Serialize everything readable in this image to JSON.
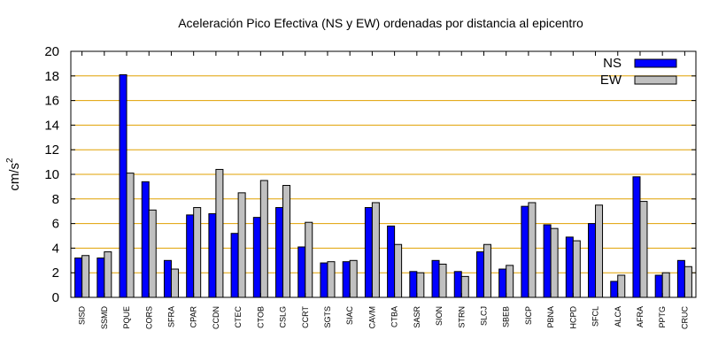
{
  "chart_data": {
    "type": "bar",
    "title": "Aceleración Pico Efectiva (NS y EW) ordenadas por distancia al epicentro",
    "xlabel": "",
    "ylabel": "cm/s",
    "ylabel_sup": "2",
    "ylim": [
      0,
      20
    ],
    "yticks": [
      "0",
      "2",
      "4",
      "6",
      "8",
      "10",
      "12",
      "14",
      "16",
      "18",
      "20"
    ],
    "grid": "horizontal",
    "grid_color": "#e0a000",
    "legend_position": "top-right",
    "categories": [
      "SISD",
      "SSMD",
      "PQUE",
      "CORS",
      "SFRA",
      "CPAR",
      "CCDN",
      "CTEC",
      "CTOB",
      "CSLG",
      "CCRT",
      "SGTS",
      "SIAC",
      "CAVM",
      "CTBA",
      "SASR",
      "SION",
      "STRN",
      "SLCJ",
      "SBEB",
      "SICP",
      "PBNA",
      "HCPD",
      "SFCL",
      "ALCA",
      "AFRA",
      "PPTG",
      "CRUC"
    ],
    "series": [
      {
        "name": "NS",
        "color": "#0000ff",
        "values": [
          3.2,
          3.2,
          18.1,
          9.4,
          3.0,
          6.7,
          6.8,
          5.2,
          6.5,
          7.3,
          4.1,
          2.8,
          2.9,
          7.3,
          5.8,
          2.1,
          3.0,
          2.1,
          3.7,
          2.3,
          7.4,
          5.9,
          4.9,
          6.0,
          1.3,
          9.8,
          1.8,
          3.0
        ]
      },
      {
        "name": "EW",
        "color": "#c0c0c0",
        "values": [
          3.4,
          3.7,
          10.1,
          7.1,
          2.3,
          7.3,
          10.4,
          8.5,
          9.5,
          9.1,
          6.1,
          2.9,
          3.0,
          7.7,
          4.3,
          2.0,
          2.7,
          1.7,
          4.3,
          2.6,
          7.7,
          5.6,
          4.6,
          7.5,
          1.8,
          7.8,
          2.0,
          2.5
        ]
      }
    ]
  }
}
